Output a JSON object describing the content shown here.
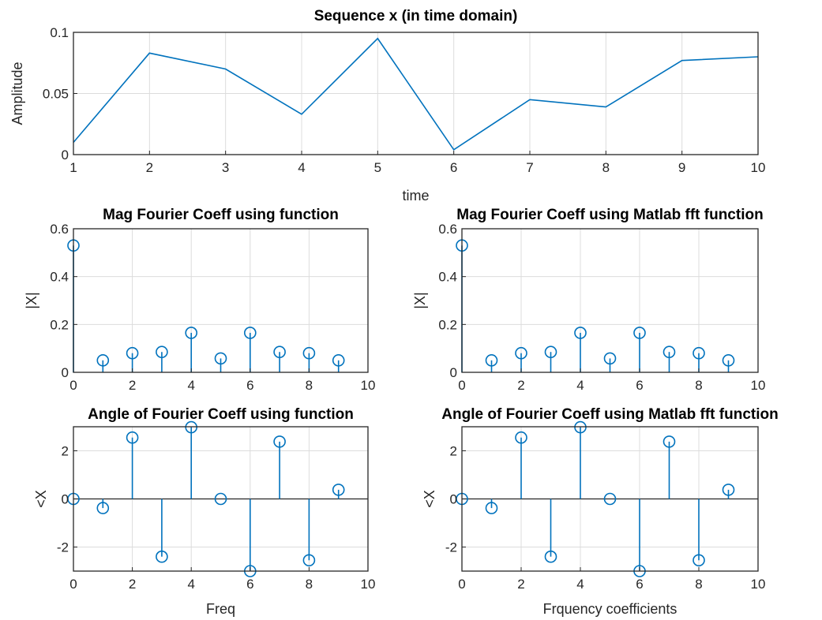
{
  "colors": {
    "series": "#0072bd",
    "axis": "#262626",
    "grid": "#dcdcdc"
  },
  "chart_data": [
    {
      "type": "line",
      "title": "Sequence x (in time domain)",
      "xlabel": "time",
      "ylabel": "Amplitude",
      "xlim": [
        1,
        10
      ],
      "ylim": [
        0,
        0.1
      ],
      "xticks": [
        1,
        2,
        3,
        4,
        5,
        6,
        7,
        8,
        9,
        10
      ],
      "yticks": [
        0,
        0.05,
        0.1
      ],
      "ytick_labels": [
        "0",
        "0.05",
        "0.1"
      ],
      "grid": true,
      "series": [
        {
          "x": [
            1,
            2,
            3,
            4,
            5,
            6,
            7,
            8,
            9,
            10
          ],
          "values": [
            0.01,
            0.083,
            0.07,
            0.033,
            0.095,
            0.004,
            0.045,
            0.039,
            0.077,
            0.08
          ]
        }
      ]
    },
    {
      "type": "stem",
      "title": "Mag Fourier Coeff using function",
      "xlabel": "",
      "ylabel": "|X|",
      "xlim": [
        0,
        10
      ],
      "ylim": [
        0,
        0.6
      ],
      "xticks": [
        0,
        2,
        4,
        6,
        8,
        10
      ],
      "yticks": [
        0,
        0.2,
        0.4,
        0.6
      ],
      "ytick_labels": [
        "0",
        "0.2",
        "0.4",
        "0.6"
      ],
      "grid": true,
      "series": [
        {
          "x": [
            0,
            1,
            2,
            3,
            4,
            5,
            6,
            7,
            8,
            9
          ],
          "values": [
            0.53,
            0.05,
            0.08,
            0.085,
            0.165,
            0.058,
            0.165,
            0.085,
            0.08,
            0.05
          ]
        }
      ]
    },
    {
      "type": "stem",
      "title": "Mag Fourier Coeff using Matlab fft function",
      "xlabel": "",
      "ylabel": "|X|",
      "xlim": [
        0,
        10
      ],
      "ylim": [
        0,
        0.6
      ],
      "xticks": [
        0,
        2,
        4,
        6,
        8,
        10
      ],
      "yticks": [
        0,
        0.2,
        0.4,
        0.6
      ],
      "ytick_labels": [
        "0",
        "0.2",
        "0.4",
        "0.6"
      ],
      "grid": true,
      "series": [
        {
          "x": [
            0,
            1,
            2,
            3,
            4,
            5,
            6,
            7,
            8,
            9
          ],
          "values": [
            0.53,
            0.05,
            0.08,
            0.085,
            0.165,
            0.058,
            0.165,
            0.085,
            0.08,
            0.05
          ]
        }
      ]
    },
    {
      "type": "stem",
      "title": "Angle of Fourier Coeff using function",
      "xlabel": "Freq",
      "ylabel": "<X",
      "xlim": [
        0,
        10
      ],
      "ylim": [
        -3,
        3
      ],
      "xticks": [
        0,
        2,
        4,
        6,
        8,
        10
      ],
      "yticks": [
        -2,
        0,
        2
      ],
      "ytick_labels": [
        "-2",
        "0",
        "2"
      ],
      "grid": true,
      "series": [
        {
          "x": [
            0,
            1,
            2,
            3,
            4,
            5,
            6,
            7,
            8,
            9
          ],
          "values": [
            0,
            -0.38,
            2.55,
            -2.4,
            2.98,
            0,
            -3.0,
            2.38,
            -2.55,
            0.38
          ]
        }
      ]
    },
    {
      "type": "stem",
      "title": "Angle of Fourier Coeff using Matlab fft function",
      "xlabel": "Frquency coefficients",
      "ylabel": "<X",
      "xlim": [
        0,
        10
      ],
      "ylim": [
        -3,
        3
      ],
      "xticks": [
        0,
        2,
        4,
        6,
        8,
        10
      ],
      "yticks": [
        -2,
        0,
        2
      ],
      "ytick_labels": [
        "-2",
        "0",
        "2"
      ],
      "grid": true,
      "series": [
        {
          "x": [
            0,
            1,
            2,
            3,
            4,
            5,
            6,
            7,
            8,
            9
          ],
          "values": [
            0,
            -0.38,
            2.55,
            -2.4,
            2.98,
            0,
            -3.0,
            2.38,
            -2.55,
            0.38
          ]
        }
      ]
    }
  ]
}
